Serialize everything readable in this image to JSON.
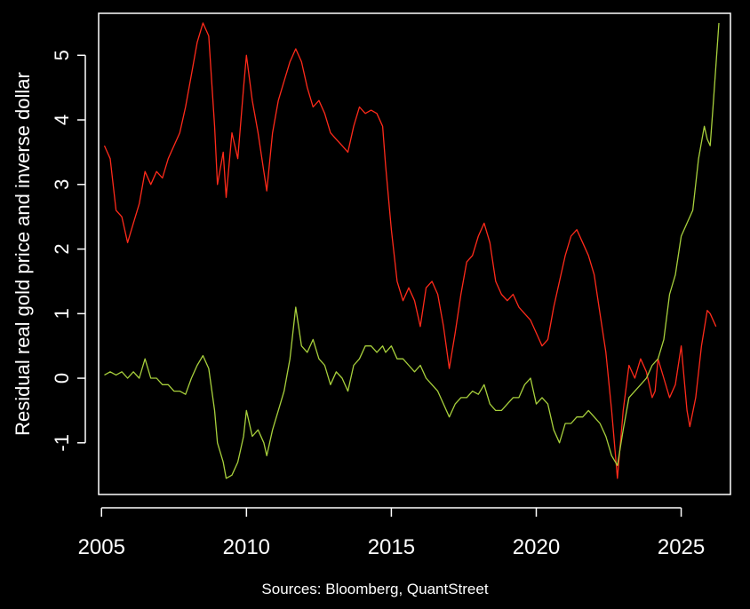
{
  "chart_data": {
    "type": "line",
    "title": "",
    "xlabel": "",
    "ylabel": "Residual real gold price and inverse dollar",
    "xlim": [
      2004.9,
      2026.7
    ],
    "ylim": [
      -1.8,
      5.65
    ],
    "x_ticks": [
      2005,
      2010,
      2015,
      2020,
      2025
    ],
    "x_tick_labels": [
      "2005",
      "2010",
      "2015",
      "2020",
      "2025"
    ],
    "y_ticks": [
      -1,
      0,
      1,
      2,
      3,
      4,
      5
    ],
    "y_tick_labels": [
      "-1",
      "0",
      "1",
      "2",
      "3",
      "4",
      "5"
    ],
    "grid": false,
    "legend": "none",
    "source_text": "Sources: Bloomberg, QuantStreet",
    "colors": {
      "background": "#000000",
      "axes": "#ffffff",
      "series_red": "#ff2a1a",
      "series_green": "#a8d03c"
    },
    "series": [
      {
        "color": "#ff2a1a",
        "points": [
          [
            2005.1,
            3.6
          ],
          [
            2005.3,
            3.4
          ],
          [
            2005.5,
            2.6
          ],
          [
            2005.7,
            2.5
          ],
          [
            2005.9,
            2.1
          ],
          [
            2006.1,
            2.4
          ],
          [
            2006.3,
            2.7
          ],
          [
            2006.5,
            3.2
          ],
          [
            2006.7,
            3.0
          ],
          [
            2006.9,
            3.2
          ],
          [
            2007.1,
            3.1
          ],
          [
            2007.3,
            3.4
          ],
          [
            2007.5,
            3.6
          ],
          [
            2007.7,
            3.8
          ],
          [
            2007.9,
            4.2
          ],
          [
            2008.1,
            4.7
          ],
          [
            2008.3,
            5.2
          ],
          [
            2008.5,
            5.5
          ],
          [
            2008.7,
            5.3
          ],
          [
            2008.9,
            3.9
          ],
          [
            2009.0,
            3.0
          ],
          [
            2009.2,
            3.5
          ],
          [
            2009.3,
            2.8
          ],
          [
            2009.5,
            3.8
          ],
          [
            2009.7,
            3.4
          ],
          [
            2009.9,
            4.5
          ],
          [
            2010.0,
            5.0
          ],
          [
            2010.2,
            4.3
          ],
          [
            2010.4,
            3.8
          ],
          [
            2010.6,
            3.2
          ],
          [
            2010.7,
            2.9
          ],
          [
            2010.9,
            3.8
          ],
          [
            2011.1,
            4.3
          ],
          [
            2011.3,
            4.6
          ],
          [
            2011.5,
            4.9
          ],
          [
            2011.7,
            5.1
          ],
          [
            2011.9,
            4.9
          ],
          [
            2012.1,
            4.5
          ],
          [
            2012.3,
            4.2
          ],
          [
            2012.5,
            4.3
          ],
          [
            2012.7,
            4.1
          ],
          [
            2012.9,
            3.8
          ],
          [
            2013.1,
            3.7
          ],
          [
            2013.3,
            3.6
          ],
          [
            2013.5,
            3.5
          ],
          [
            2013.7,
            3.9
          ],
          [
            2013.9,
            4.2
          ],
          [
            2014.1,
            4.1
          ],
          [
            2014.3,
            4.15
          ],
          [
            2014.5,
            4.1
          ],
          [
            2014.7,
            3.9
          ],
          [
            2014.8,
            3.3
          ],
          [
            2015.0,
            2.3
          ],
          [
            2015.2,
            1.5
          ],
          [
            2015.4,
            1.2
          ],
          [
            2015.6,
            1.4
          ],
          [
            2015.8,
            1.2
          ],
          [
            2016.0,
            0.8
          ],
          [
            2016.2,
            1.4
          ],
          [
            2016.4,
            1.5
          ],
          [
            2016.6,
            1.3
          ],
          [
            2016.8,
            0.8
          ],
          [
            2017.0,
            0.15
          ],
          [
            2017.2,
            0.7
          ],
          [
            2017.4,
            1.3
          ],
          [
            2017.6,
            1.8
          ],
          [
            2017.8,
            1.9
          ],
          [
            2018.0,
            2.2
          ],
          [
            2018.2,
            2.4
          ],
          [
            2018.4,
            2.1
          ],
          [
            2018.6,
            1.5
          ],
          [
            2018.8,
            1.3
          ],
          [
            2019.0,
            1.2
          ],
          [
            2019.2,
            1.3
          ],
          [
            2019.4,
            1.1
          ],
          [
            2019.6,
            1.0
          ],
          [
            2019.8,
            0.9
          ],
          [
            2020.0,
            0.7
          ],
          [
            2020.2,
            0.5
          ],
          [
            2020.4,
            0.6
          ],
          [
            2020.6,
            1.1
          ],
          [
            2020.8,
            1.5
          ],
          [
            2021.0,
            1.9
          ],
          [
            2021.2,
            2.2
          ],
          [
            2021.4,
            2.3
          ],
          [
            2021.6,
            2.1
          ],
          [
            2021.8,
            1.9
          ],
          [
            2022.0,
            1.6
          ],
          [
            2022.2,
            1.0
          ],
          [
            2022.4,
            0.4
          ],
          [
            2022.6,
            -0.5
          ],
          [
            2022.8,
            -1.55
          ],
          [
            2023.0,
            -0.5
          ],
          [
            2023.2,
            0.2
          ],
          [
            2023.4,
            0.0
          ],
          [
            2023.6,
            0.3
          ],
          [
            2023.8,
            0.1
          ],
          [
            2024.0,
            -0.3
          ],
          [
            2024.1,
            -0.2
          ],
          [
            2024.2,
            0.3
          ],
          [
            2024.4,
            0.0
          ],
          [
            2024.6,
            -0.3
          ],
          [
            2024.8,
            -0.1
          ],
          [
            2025.0,
            0.5
          ],
          [
            2025.2,
            -0.5
          ],
          [
            2025.3,
            -0.75
          ],
          [
            2025.5,
            -0.3
          ],
          [
            2025.7,
            0.5
          ],
          [
            2025.9,
            1.05
          ],
          [
            2026.0,
            1.0
          ],
          [
            2026.2,
            0.8
          ]
        ]
      },
      {
        "color": "#a8d03c",
        "points": [
          [
            2005.1,
            0.05
          ],
          [
            2005.3,
            0.1
          ],
          [
            2005.5,
            0.05
          ],
          [
            2005.7,
            0.1
          ],
          [
            2005.9,
            0.0
          ],
          [
            2006.1,
            0.1
          ],
          [
            2006.3,
            0.0
          ],
          [
            2006.5,
            0.3
          ],
          [
            2006.7,
            0.0
          ],
          [
            2006.9,
            0.0
          ],
          [
            2007.1,
            -0.1
          ],
          [
            2007.3,
            -0.1
          ],
          [
            2007.5,
            -0.2
          ],
          [
            2007.7,
            -0.2
          ],
          [
            2007.9,
            -0.25
          ],
          [
            2008.1,
            0.0
          ],
          [
            2008.3,
            0.2
          ],
          [
            2008.5,
            0.35
          ],
          [
            2008.7,
            0.15
          ],
          [
            2008.9,
            -0.5
          ],
          [
            2009.0,
            -1.0
          ],
          [
            2009.2,
            -1.3
          ],
          [
            2009.3,
            -1.55
          ],
          [
            2009.5,
            -1.5
          ],
          [
            2009.7,
            -1.3
          ],
          [
            2009.9,
            -0.9
          ],
          [
            2010.0,
            -0.5
          ],
          [
            2010.2,
            -0.9
          ],
          [
            2010.4,
            -0.8
          ],
          [
            2010.6,
            -1.0
          ],
          [
            2010.7,
            -1.2
          ],
          [
            2010.9,
            -0.8
          ],
          [
            2011.1,
            -0.5
          ],
          [
            2011.3,
            -0.2
          ],
          [
            2011.5,
            0.3
          ],
          [
            2011.7,
            1.1
          ],
          [
            2011.9,
            0.5
          ],
          [
            2012.1,
            0.4
          ],
          [
            2012.3,
            0.6
          ],
          [
            2012.5,
            0.3
          ],
          [
            2012.7,
            0.2
          ],
          [
            2012.9,
            -0.1
          ],
          [
            2013.1,
            0.1
          ],
          [
            2013.3,
            0.0
          ],
          [
            2013.5,
            -0.2
          ],
          [
            2013.7,
            0.2
          ],
          [
            2013.9,
            0.3
          ],
          [
            2014.1,
            0.5
          ],
          [
            2014.3,
            0.5
          ],
          [
            2014.5,
            0.4
          ],
          [
            2014.7,
            0.5
          ],
          [
            2014.8,
            0.4
          ],
          [
            2015.0,
            0.5
          ],
          [
            2015.2,
            0.3
          ],
          [
            2015.4,
            0.3
          ],
          [
            2015.6,
            0.2
          ],
          [
            2015.8,
            0.1
          ],
          [
            2016.0,
            0.2
          ],
          [
            2016.2,
            0.0
          ],
          [
            2016.4,
            -0.1
          ],
          [
            2016.6,
            -0.2
          ],
          [
            2016.8,
            -0.4
          ],
          [
            2017.0,
            -0.6
          ],
          [
            2017.2,
            -0.4
          ],
          [
            2017.4,
            -0.3
          ],
          [
            2017.6,
            -0.3
          ],
          [
            2017.8,
            -0.2
          ],
          [
            2018.0,
            -0.25
          ],
          [
            2018.2,
            -0.1
          ],
          [
            2018.4,
            -0.4
          ],
          [
            2018.6,
            -0.5
          ],
          [
            2018.8,
            -0.5
          ],
          [
            2019.0,
            -0.4
          ],
          [
            2019.2,
            -0.3
          ],
          [
            2019.4,
            -0.3
          ],
          [
            2019.6,
            -0.1
          ],
          [
            2019.8,
            0.0
          ],
          [
            2020.0,
            -0.4
          ],
          [
            2020.2,
            -0.3
          ],
          [
            2020.4,
            -0.4
          ],
          [
            2020.6,
            -0.8
          ],
          [
            2020.8,
            -1.0
          ],
          [
            2021.0,
            -0.7
          ],
          [
            2021.2,
            -0.7
          ],
          [
            2021.4,
            -0.6
          ],
          [
            2021.6,
            -0.6
          ],
          [
            2021.8,
            -0.5
          ],
          [
            2022.0,
            -0.6
          ],
          [
            2022.2,
            -0.7
          ],
          [
            2022.4,
            -0.9
          ],
          [
            2022.6,
            -1.2
          ],
          [
            2022.8,
            -1.35
          ],
          [
            2023.0,
            -0.8
          ],
          [
            2023.2,
            -0.3
          ],
          [
            2023.4,
            -0.2
          ],
          [
            2023.6,
            -0.1
          ],
          [
            2023.8,
            0.0
          ],
          [
            2024.0,
            0.2
          ],
          [
            2024.2,
            0.3
          ],
          [
            2024.4,
            0.6
          ],
          [
            2024.6,
            1.3
          ],
          [
            2024.8,
            1.6
          ],
          [
            2025.0,
            2.2
          ],
          [
            2025.2,
            2.4
          ],
          [
            2025.4,
            2.6
          ],
          [
            2025.6,
            3.4
          ],
          [
            2025.8,
            3.9
          ],
          [
            2025.9,
            3.7
          ],
          [
            2026.0,
            3.6
          ],
          [
            2026.1,
            4.2
          ],
          [
            2026.3,
            5.5
          ]
        ]
      }
    ]
  }
}
